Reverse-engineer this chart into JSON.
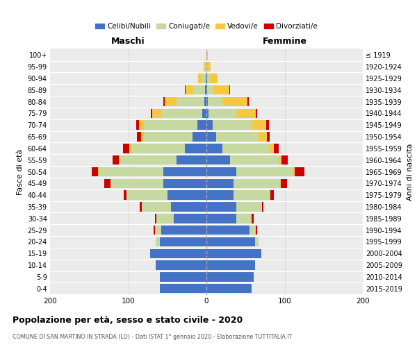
{
  "age_groups": [
    "0-4",
    "5-9",
    "10-14",
    "15-19",
    "20-24",
    "25-29",
    "30-34",
    "35-39",
    "40-44",
    "45-49",
    "50-54",
    "55-59",
    "60-64",
    "65-69",
    "70-74",
    "75-79",
    "80-84",
    "85-89",
    "90-94",
    "95-99",
    "100+"
  ],
  "birth_years": [
    "2015-2019",
    "2010-2014",
    "2005-2009",
    "2000-2004",
    "1995-1999",
    "1990-1994",
    "1985-1989",
    "1980-1984",
    "1975-1979",
    "1970-1974",
    "1965-1969",
    "1960-1964",
    "1955-1959",
    "1950-1954",
    "1945-1949",
    "1940-1944",
    "1935-1939",
    "1930-1934",
    "1925-1929",
    "1920-1924",
    "≤ 1919"
  ],
  "colors": {
    "celibe": "#4472c4",
    "coniugato": "#c5d9a0",
    "vedovo": "#f5c842",
    "divorziato": "#cc0000"
  },
  "maschi_celibe": [
    60,
    60,
    65,
    72,
    60,
    58,
    42,
    45,
    50,
    55,
    55,
    38,
    28,
    18,
    12,
    5,
    3,
    2,
    1,
    0,
    0
  ],
  "maschi_coniugato": [
    0,
    0,
    0,
    0,
    5,
    8,
    22,
    38,
    52,
    68,
    82,
    72,
    68,
    62,
    68,
    52,
    35,
    15,
    5,
    2,
    0
  ],
  "maschi_vedovo": [
    0,
    0,
    0,
    0,
    0,
    0,
    0,
    0,
    0,
    0,
    2,
    2,
    3,
    4,
    6,
    12,
    15,
    10,
    5,
    2,
    0
  ],
  "maschi_divorziato": [
    0,
    0,
    0,
    0,
    0,
    2,
    2,
    2,
    4,
    8,
    8,
    8,
    8,
    5,
    4,
    2,
    2,
    1,
    0,
    0,
    0
  ],
  "femmine_nubile": [
    58,
    60,
    62,
    70,
    62,
    55,
    38,
    38,
    35,
    35,
    38,
    30,
    20,
    12,
    8,
    3,
    2,
    1,
    1,
    0,
    0
  ],
  "femmine_coniugata": [
    0,
    0,
    0,
    0,
    5,
    8,
    20,
    32,
    45,
    58,
    72,
    62,
    60,
    55,
    50,
    35,
    18,
    8,
    3,
    1,
    0
  ],
  "femmine_vedova": [
    0,
    0,
    0,
    0,
    0,
    0,
    0,
    1,
    2,
    2,
    3,
    4,
    6,
    10,
    18,
    25,
    32,
    20,
    10,
    4,
    2
  ],
  "femmine_divorziata": [
    0,
    0,
    0,
    0,
    0,
    2,
    2,
    2,
    4,
    8,
    12,
    8,
    6,
    4,
    4,
    2,
    2,
    1,
    0,
    0,
    0
  ],
  "title": "Popolazione per età, sesso e stato civile - 2020",
  "subtitle": "COMUNE DI SAN MARTINO IN STRADA (LO) - Dati ISTAT 1° gennaio 2020 - Elaborazione TUTTITALIA.IT",
  "xlabel_left": "Maschi",
  "xlabel_right": "Femmine",
  "ylabel_left": "Fasce di età",
  "ylabel_right": "Anni di nascita",
  "legend_labels": [
    "Celibi/Nubili",
    "Coniugati/e",
    "Vedovi/e",
    "Divorziati/e"
  ],
  "xlim": 200,
  "bg_color": "#ebebeb"
}
